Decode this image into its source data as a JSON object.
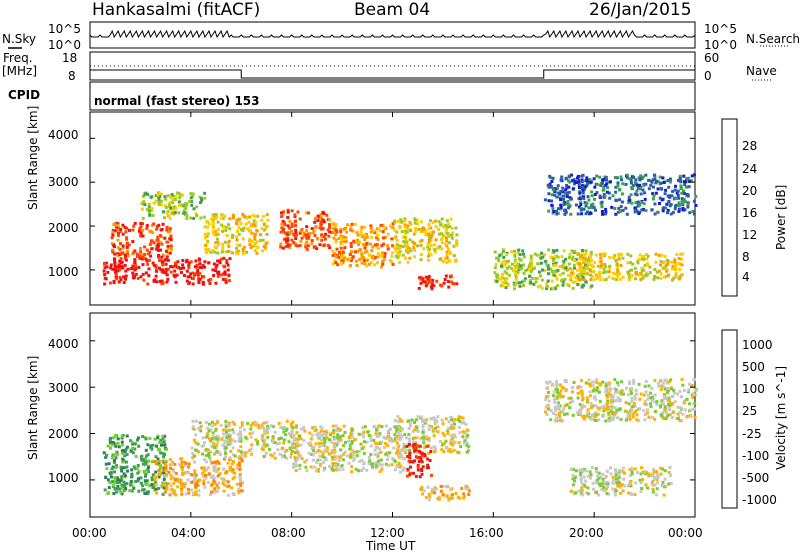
{
  "header": {
    "station": "Hankasalmi (fitACF)",
    "beam": "Beam 04",
    "date": "26/Jan/2015"
  },
  "sky_panel": {
    "left_label": "N.Sky",
    "right_label": "N.Search",
    "left_ticks": [
      "10^5",
      "10^0"
    ],
    "right_ticks": [
      "10^5",
      "10^0"
    ]
  },
  "freq_panel": {
    "left_label_1": "Freq.",
    "left_label_2": "[MHz]",
    "right_label": "Nave",
    "left_ticks": [
      "18",
      "8"
    ],
    "right_ticks": [
      "60",
      "0"
    ]
  },
  "cpid_panel": {
    "label": "CPID",
    "program": "normal (fast stereo) 153"
  },
  "chart_data": [
    {
      "type": "heatmap",
      "name": "power",
      "ylabel": "Slant Range [km]",
      "y_ticks": [
        "4000",
        "3000",
        "2000",
        "1000"
      ],
      "x_ticks": [
        "00:00",
        "04:00",
        "08:00",
        "12:00",
        "16:00",
        "20:00",
        "00:00"
      ],
      "colorbar_label": "Power [dB]",
      "colorbar_ticks": [
        "28",
        "24",
        "20",
        "16",
        "12",
        "8",
        "4"
      ],
      "colorbar_colors": [
        "#ee1111",
        "#ff4400",
        "#ff9900",
        "#ffcc00",
        "#99cc22",
        "#3e9e55",
        "#2a5fa8",
        "#1a1acc"
      ],
      "regions": [
        {
          "t0": 0.5,
          "t1": 5.5,
          "r0": 700,
          "r1": 1300,
          "level": 0
        },
        {
          "t0": 0.8,
          "t1": 3.2,
          "r0": 1300,
          "r1": 2100,
          "level": 1
        },
        {
          "t0": 2.0,
          "t1": 4.5,
          "r0": 2200,
          "r1": 2800,
          "level": 4
        },
        {
          "t0": 4.5,
          "t1": 7.0,
          "r0": 1400,
          "r1": 2300,
          "level": 3
        },
        {
          "t0": 7.5,
          "t1": 9.5,
          "r0": 1500,
          "r1": 2400,
          "level": 1
        },
        {
          "t0": 9.5,
          "t1": 12.0,
          "r0": 1100,
          "r1": 2100,
          "level": 2
        },
        {
          "t0": 12.0,
          "t1": 14.5,
          "r0": 1200,
          "r1": 2200,
          "level": 3
        },
        {
          "t0": 13.0,
          "t1": 14.5,
          "r0": 600,
          "r1": 900,
          "level": 0
        },
        {
          "t0": 16.0,
          "t1": 20.0,
          "r0": 600,
          "r1": 1500,
          "level": 4
        },
        {
          "t0": 18.0,
          "t1": 24.0,
          "r0": 2300,
          "r1": 3200,
          "level": 6
        },
        {
          "t0": 19.0,
          "t1": 23.5,
          "r0": 800,
          "r1": 1400,
          "level": 3
        }
      ]
    },
    {
      "type": "heatmap",
      "name": "velocity",
      "ylabel": "Slant Range [km]",
      "y_ticks": [
        "4000",
        "3000",
        "2000",
        "1000"
      ],
      "x_ticks": [
        "00:00",
        "04:00",
        "08:00",
        "12:00",
        "16:00",
        "20:00",
        "00:00"
      ],
      "xlabel": "Time UT",
      "colorbar_label": "Velocity [m s^-1]",
      "colorbar_ticks": [
        "1000",
        "500",
        "100",
        "25",
        "-25",
        "-100",
        "-500",
        "-1000"
      ],
      "colorbar_colors": [
        "#2040b0",
        "#2d7f5a",
        "#3e9e55",
        "#77cc33",
        "#c8c8c8",
        "#ffb000",
        "#ff8800",
        "#ff4400",
        "#e81a10"
      ],
      "regions": [
        {
          "t0": 0.5,
          "t1": 3.0,
          "r0": 700,
          "r1": 2000,
          "level": 2
        },
        {
          "t0": 2.5,
          "t1": 6.0,
          "r0": 700,
          "r1": 1500,
          "level": 5
        },
        {
          "t0": 4.0,
          "t1": 8.0,
          "r0": 1500,
          "r1": 2300,
          "level": 4
        },
        {
          "t0": 8.0,
          "t1": 12.5,
          "r0": 1200,
          "r1": 2200,
          "level": 4
        },
        {
          "t0": 12.0,
          "t1": 15.0,
          "r0": 1600,
          "r1": 2400,
          "level": 4
        },
        {
          "t0": 13.0,
          "t1": 15.0,
          "r0": 600,
          "r1": 900,
          "level": 5
        },
        {
          "t0": 18.0,
          "t1": 24.0,
          "r0": 2300,
          "r1": 3200,
          "level": 4
        },
        {
          "t0": 19.0,
          "t1": 23.0,
          "r0": 700,
          "r1": 1300,
          "level": 4
        },
        {
          "t0": 12.5,
          "t1": 13.5,
          "r0": 1100,
          "r1": 1800,
          "level": 8
        }
      ]
    }
  ]
}
